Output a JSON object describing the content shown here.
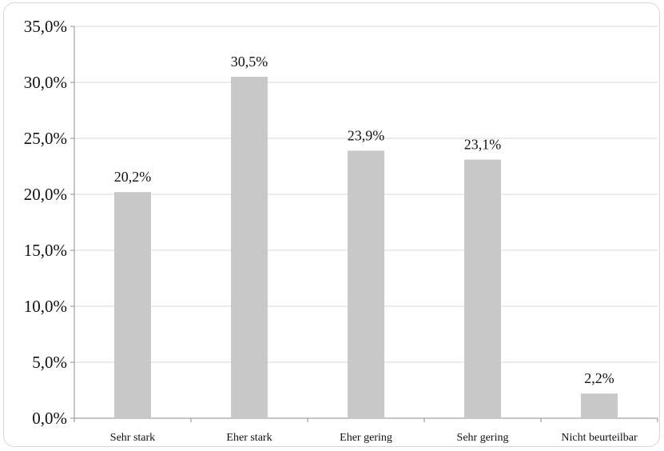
{
  "chart_data": {
    "type": "bar",
    "title": "",
    "xlabel": "",
    "ylabel": "",
    "categories": [
      "Sehr stark",
      "Eher stark",
      "Eher gering",
      "Sehr gering",
      "Nicht beurteilbar"
    ],
    "values": [
      20.2,
      30.5,
      23.9,
      23.1,
      2.2
    ],
    "data_labels": [
      "20,2%",
      "30,5%",
      "23,9%",
      "23,1%",
      "2,2%"
    ],
    "ylim": [
      0,
      35
    ],
    "yticks": [
      0,
      5,
      10,
      15,
      20,
      25,
      30,
      35
    ],
    "ytick_labels": [
      "0,0%",
      "5,0%",
      "10,0%",
      "15,0%",
      "20,0%",
      "25,0%",
      "30,0%",
      "35,0%"
    ],
    "grid": true,
    "legend": "none",
    "colors": {
      "bar": "#c8c8c8",
      "grid": "#d9d9d9",
      "axis": "#8c8c8c",
      "text": "#111111"
    }
  }
}
